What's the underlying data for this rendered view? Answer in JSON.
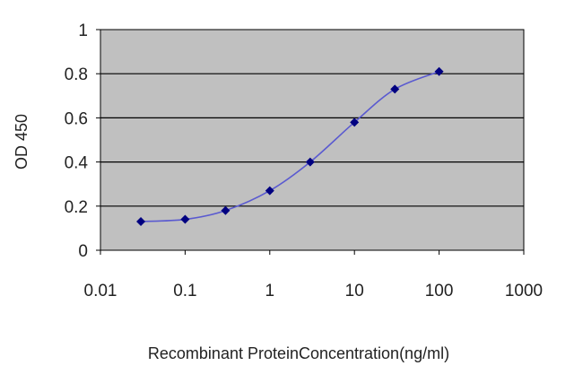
{
  "chart_data": {
    "type": "line",
    "title": "",
    "xlabel": "Recombinant ProteinConcentration(ng/ml)",
    "ylabel": "OD 450",
    "x_scale": "log",
    "xlim": [
      0.01,
      1000
    ],
    "ylim": [
      0,
      1
    ],
    "x_ticks": [
      "0.01",
      "0.1",
      "1",
      "10",
      "100",
      "1000"
    ],
    "y_ticks": [
      "0",
      "0.2",
      "0.4",
      "0.6",
      "0.8",
      "1"
    ],
    "grid": "horizontal",
    "series": [
      {
        "x": [
          0.03,
          0.1,
          0.3,
          1,
          3,
          10,
          30,
          100
        ],
        "y": [
          0.13,
          0.14,
          0.18,
          0.27,
          0.4,
          0.58,
          0.73,
          0.81
        ]
      }
    ],
    "colors": {
      "plot_bg": "#c0c0c0",
      "grid": "#000000",
      "line": "#5a5ad0",
      "marker": "#000080"
    }
  }
}
